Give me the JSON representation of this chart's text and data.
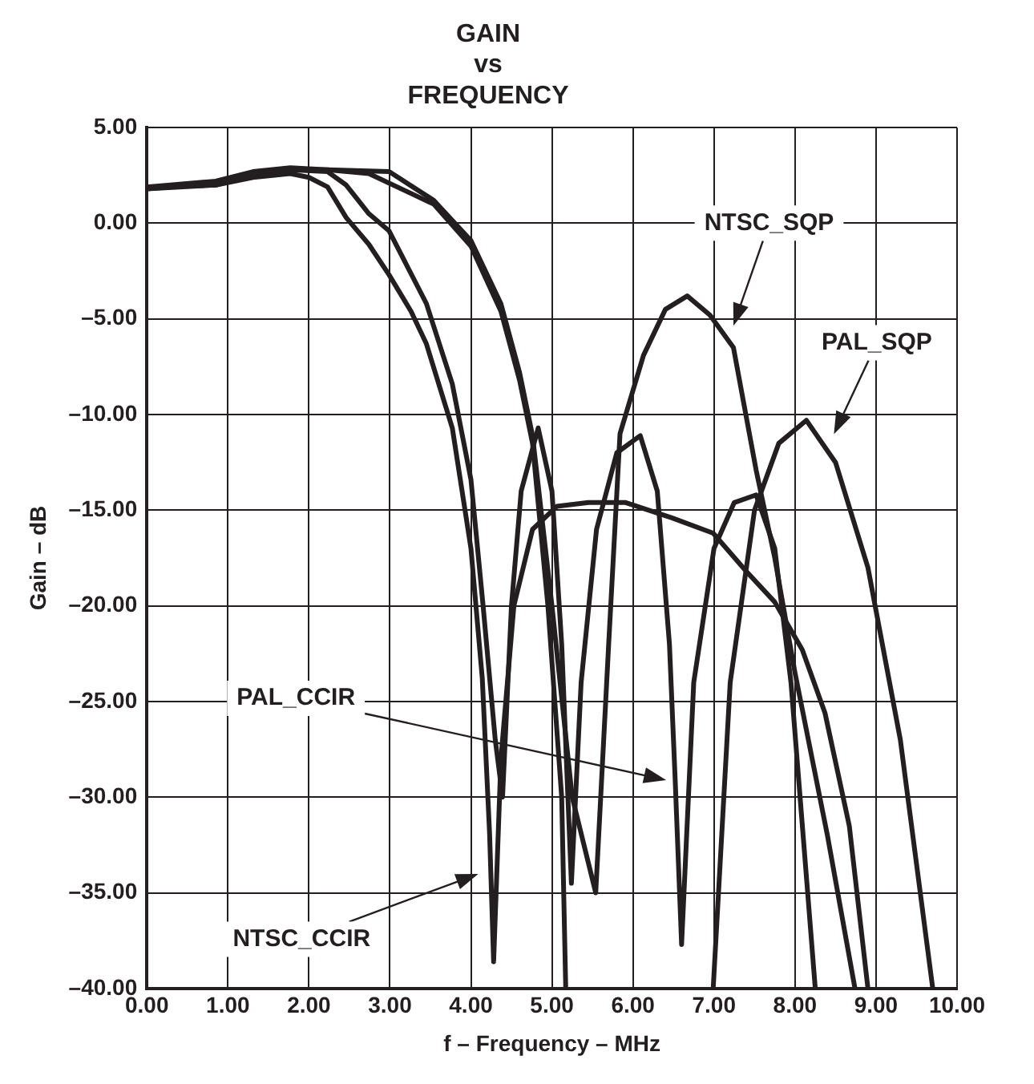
{
  "chart_data": {
    "type": "line",
    "title": "GAIN\nvs\nFREQUENCY",
    "xlabel": "f – Frequency – MHz",
    "ylabel": "Gain – dB",
    "xlim": [
      0,
      10
    ],
    "ylim": [
      -40,
      5
    ],
    "xticks": [
      {
        "value": 0,
        "label": "0.00"
      },
      {
        "value": 1,
        "label": "1.00"
      },
      {
        "value": 2,
        "label": "2.00"
      },
      {
        "value": 3,
        "label": "3.00"
      },
      {
        "value": 4,
        "label": "4.00"
      },
      {
        "value": 5,
        "label": "5.00"
      },
      {
        "value": 6,
        "label": "6.00"
      },
      {
        "value": 7,
        "label": "7.00"
      },
      {
        "value": 8,
        "label": "8.00"
      },
      {
        "value": 9,
        "label": "9.00"
      },
      {
        "value": 10,
        "label": "10.00"
      }
    ],
    "yticks": [
      {
        "value": 5,
        "label": "5.00"
      },
      {
        "value": 0,
        "label": "0.00"
      },
      {
        "value": -5,
        "label": "–5.00"
      },
      {
        "value": -10,
        "label": "–10.00"
      },
      {
        "value": -15,
        "label": "–15.00"
      },
      {
        "value": -20,
        "label": "–20.00"
      },
      {
        "value": -25,
        "label": "–25.00"
      },
      {
        "value": -30,
        "label": "–30.00"
      },
      {
        "value": -35,
        "label": "–35.00"
      },
      {
        "value": -40,
        "label": "–40.00"
      }
    ],
    "grid": true,
    "legend": false,
    "marker": "none",
    "line_style": "solid",
    "series": [
      {
        "color": "#231f20",
        "x": [
          0,
          0.85,
          1.31,
          1.77,
          2.0,
          2.23,
          2.46,
          2.74,
          2.99,
          3.26,
          3.45,
          3.77,
          4.0,
          4.14,
          4.23,
          4.28,
          4.37,
          4.53,
          4.76,
          5.06,
          5.45,
          5.91,
          6.48,
          6.99,
          7.4,
          7.75,
          8.09,
          8.37,
          8.67,
          8.9
        ],
        "values": [
          1.9,
          2.0,
          2.4,
          2.6,
          2.4,
          1.9,
          0.3,
          -1.1,
          -2.7,
          -4.6,
          -6.3,
          -10.7,
          -17.0,
          -23.8,
          -31.9,
          -38.6,
          -28,
          -20,
          -16.0,
          -14.8,
          -14.6,
          -14.6,
          -15.4,
          -16.2,
          -18.2,
          -19.8,
          -22.3,
          -25.6,
          -31.5,
          -40
        ]
      },
      {
        "color": "#231f20",
        "x": [
          0,
          0.85,
          1.31,
          1.77,
          2.23,
          2.46,
          2.74,
          2.99,
          3.45,
          3.77,
          4.0,
          4.15,
          4.3,
          4.39,
          4.5,
          4.62,
          4.83,
          5.0,
          5.12,
          5.24,
          5.36,
          5.55,
          5.8,
          6.09,
          6.3,
          6.45,
          6.52,
          6.6,
          6.75,
          7.0,
          7.25,
          7.52,
          7.75,
          7.95,
          8.25
        ],
        "values": [
          1.8,
          2.1,
          2.6,
          2.8,
          2.7,
          2.0,
          0.5,
          -0.4,
          -4.2,
          -8.4,
          -13.4,
          -20,
          -27,
          -30,
          -20,
          -14,
          -10.7,
          -14,
          -22,
          -34.5,
          -24,
          -16,
          -12,
          -11.1,
          -14,
          -22,
          -29,
          -37.7,
          -24,
          -17,
          -14.6,
          -14.2,
          -17,
          -24,
          -40
        ]
      },
      {
        "color": "#231f20",
        "x": [
          0,
          0.85,
          1.31,
          1.77,
          2.23,
          2.99,
          3.54,
          4.0,
          4.37,
          4.6,
          4.76,
          5.0,
          5.25,
          5.54,
          5.7,
          5.84,
          6.13,
          6.4,
          6.67,
          6.95,
          7.24,
          7.52,
          7.75,
          8.0,
          8.4,
          8.74
        ],
        "values": [
          1.9,
          2.2,
          2.7,
          2.9,
          2.8,
          2.7,
          1.2,
          -0.9,
          -4.2,
          -7.8,
          -11.1,
          -20,
          -30,
          -35,
          -22,
          -11,
          -6.9,
          -4.5,
          -3.8,
          -4.8,
          -6.5,
          -12.9,
          -17.5,
          -23.5,
          -32,
          -40
        ]
      },
      {
        "color": "#231f20",
        "x": [
          0,
          0.85,
          1.31,
          1.77,
          2.23,
          2.74,
          3.54,
          4.0,
          4.37,
          4.6,
          4.76,
          4.95,
          5.12,
          5.17,
          6.0,
          6.99,
          7.2,
          7.5,
          7.8,
          8.14,
          8.5,
          8.9,
          9.3,
          9.7
        ],
        "values": [
          1.8,
          2.0,
          2.5,
          2.8,
          2.8,
          2.6,
          1.0,
          -1.2,
          -4.6,
          -8.2,
          -11.5,
          -20,
          -30,
          -40,
          null,
          -40,
          -24,
          -15,
          -11.5,
          -10.3,
          -12.5,
          -18,
          -27,
          -40
        ]
      }
    ],
    "annotations": [
      "NTSC_SQP",
      "PAL_SQP",
      "PAL_CCIR",
      "NTSC_CCIR"
    ]
  }
}
